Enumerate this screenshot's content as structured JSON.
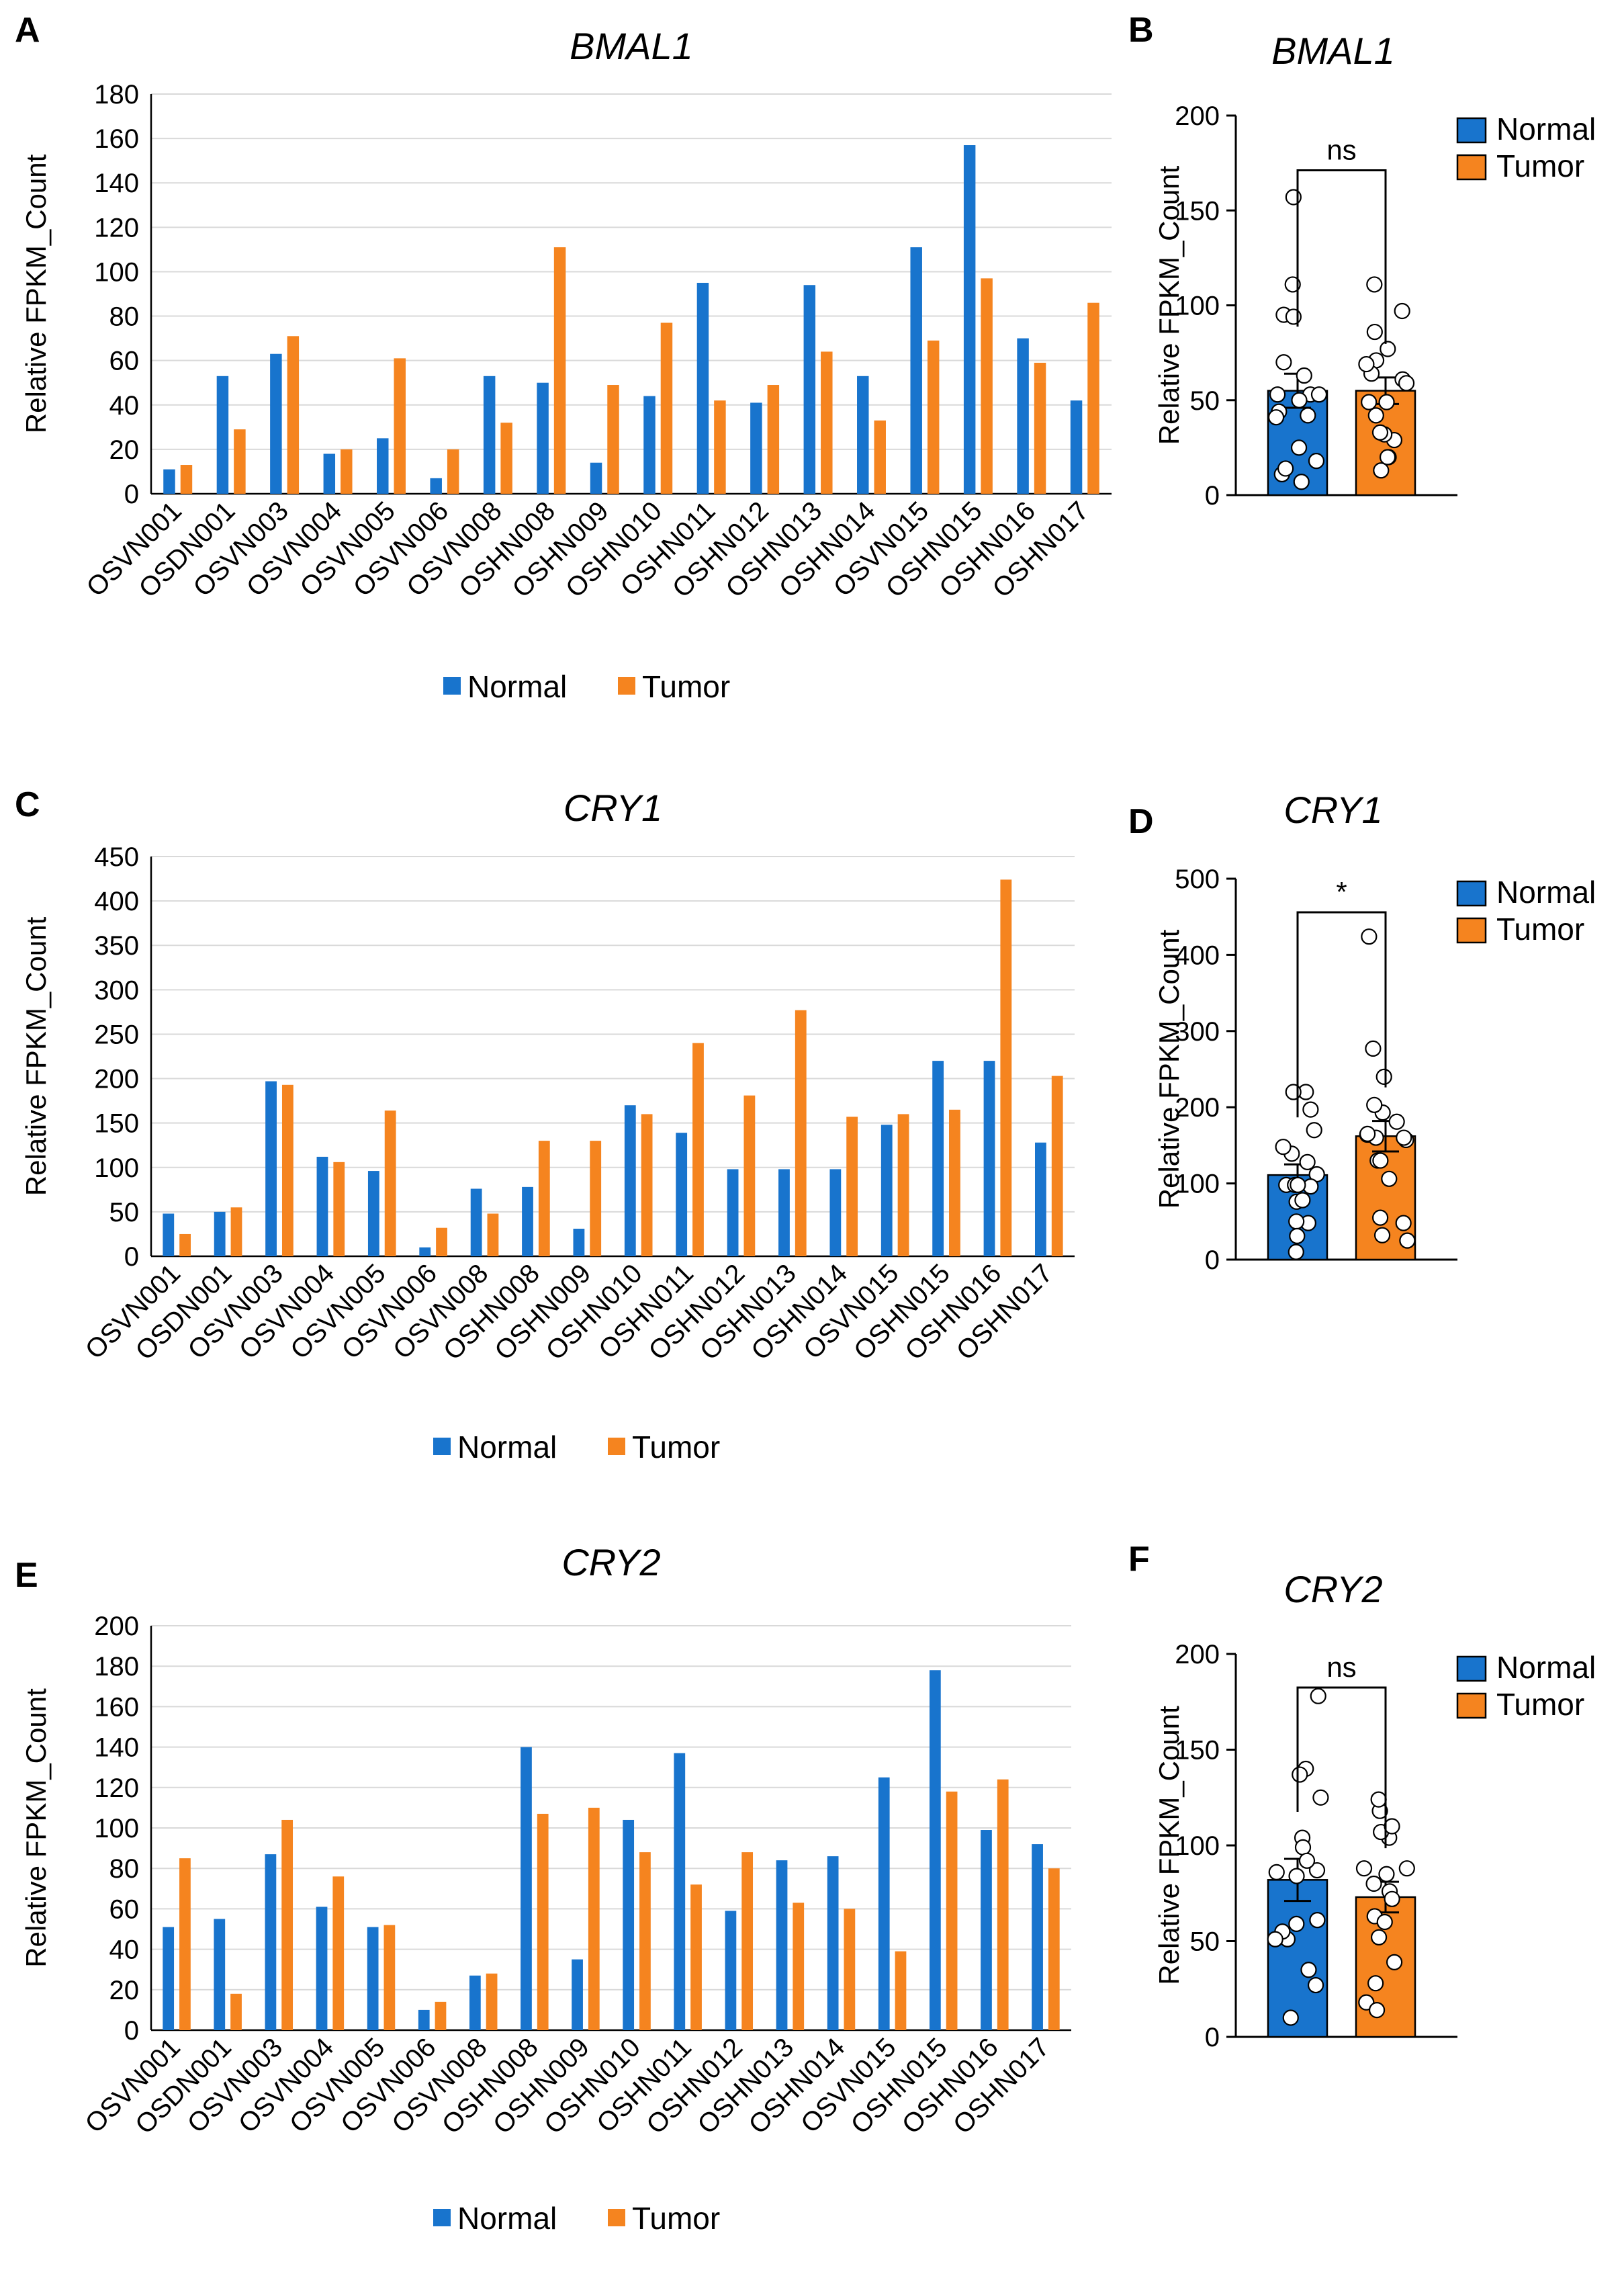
{
  "colors": {
    "normal": "#1874cd",
    "tumor": "#f5841f",
    "grid": "#d9d9d9",
    "axis": "#000000"
  },
  "chart_data": [
    {
      "panel": "A",
      "type": "bar",
      "title": "BMAL1",
      "ylabel": "Relative FPKM_Count",
      "ylim": [
        0,
        180
      ],
      "ytick_step": 20,
      "categories": [
        "OSVN001",
        "OSDN001",
        "OSVN003",
        "OSVN004",
        "OSVN005",
        "OSVN006",
        "OSVN008",
        "OSHN008",
        "OSHN009",
        "OSHN010",
        "OSHN011",
        "OSHN012",
        "OSHN013",
        "OSHN014",
        "OSVN015",
        "OSHN015",
        "OSHN016",
        "OSHN017"
      ],
      "series": [
        {
          "name": "Normal",
          "values": [
            11,
            53,
            63,
            18,
            25,
            7,
            53,
            50,
            14,
            44,
            95,
            41,
            94,
            53,
            111,
            157,
            70,
            42
          ]
        },
        {
          "name": "Tumor",
          "values": [
            13,
            29,
            71,
            20,
            61,
            20,
            32,
            111,
            49,
            77,
            42,
            49,
            64,
            33,
            69,
            97,
            59,
            86
          ]
        }
      ],
      "grid": true,
      "legend": "bottom"
    },
    {
      "panel": "B",
      "type": "bar",
      "title": "BMAL1",
      "ylabel": "Relative FPKM_Count",
      "ylim": [
        0,
        200
      ],
      "ytick_step": 50,
      "categories": [
        "Normal",
        "Tumor"
      ],
      "values": [
        55,
        55
      ],
      "sem": [
        9,
        7
      ],
      "significance": "ns",
      "legend": "top-right"
    },
    {
      "panel": "C",
      "type": "bar",
      "title": "CRY1",
      "ylabel": "Relative FPKM_Count",
      "ylim": [
        0,
        450
      ],
      "ytick_step": 50,
      "categories": [
        "OSVN001",
        "OSDN001",
        "OSVN003",
        "OSVN004",
        "OSVN005",
        "OSVN006",
        "OSVN008",
        "OSHN008",
        "OSHN009",
        "OSHN010",
        "OSHN011",
        "OSHN012",
        "OSHN013",
        "OSHN014",
        "OSVN015",
        "OSHN015",
        "OSHN016",
        "OSHN017"
      ],
      "series": [
        {
          "name": "Normal",
          "values": [
            48,
            50,
            197,
            112,
            96,
            10,
            76,
            78,
            31,
            170,
            139,
            98,
            98,
            98,
            148,
            220,
            220,
            128
          ]
        },
        {
          "name": "Tumor",
          "values": [
            25,
            55,
            193,
            106,
            164,
            32,
            48,
            130,
            130,
            160,
            240,
            181,
            277,
            157,
            160,
            165,
            424,
            203
          ]
        }
      ],
      "grid": true,
      "legend": "bottom"
    },
    {
      "panel": "D",
      "type": "bar",
      "title": "CRY1",
      "ylabel": "Relative FPKM_Count",
      "ylim": [
        0,
        500
      ],
      "ytick_step": 100,
      "categories": [
        "Normal",
        "Tumor"
      ],
      "values": [
        111,
        162
      ],
      "sem": [
        14,
        20
      ],
      "significance": "*",
      "legend": "top-right"
    },
    {
      "panel": "E",
      "type": "bar",
      "title": "CRY2",
      "ylabel": "Relative FPKM_Count",
      "ylim": [
        0,
        200
      ],
      "ytick_step": 20,
      "categories": [
        "OSVN001",
        "OSDN001",
        "OSVN003",
        "OSVN004",
        "OSVN005",
        "OSVN006",
        "OSVN008",
        "OSHN008",
        "OSHN009",
        "OSHN010",
        "OSHN011",
        "OSHN012",
        "OSHN013",
        "OSHN014",
        "OSVN015",
        "OSHN015",
        "OSHN016",
        "OSHN017"
      ],
      "series": [
        {
          "name": "Normal",
          "values": [
            51,
            55,
            87,
            61,
            51,
            10,
            27,
            140,
            35,
            104,
            137,
            59,
            84,
            86,
            125,
            178,
            99,
            92
          ]
        },
        {
          "name": "Tumor",
          "values": [
            85,
            18,
            104,
            76,
            52,
            14,
            28,
            107,
            110,
            88,
            72,
            88,
            63,
            60,
            39,
            118,
            124,
            80
          ]
        }
      ],
      "grid": true,
      "legend": "bottom"
    },
    {
      "panel": "F",
      "type": "bar",
      "title": "CRY2",
      "ylabel": "Relative FPKM_Count",
      "ylim": [
        0,
        200
      ],
      "ytick_step": 50,
      "categories": [
        "Normal",
        "Tumor"
      ],
      "values": [
        82,
        73
      ],
      "sem": [
        11,
        8
      ],
      "significance": "ns",
      "legend": "top-right"
    }
  ]
}
